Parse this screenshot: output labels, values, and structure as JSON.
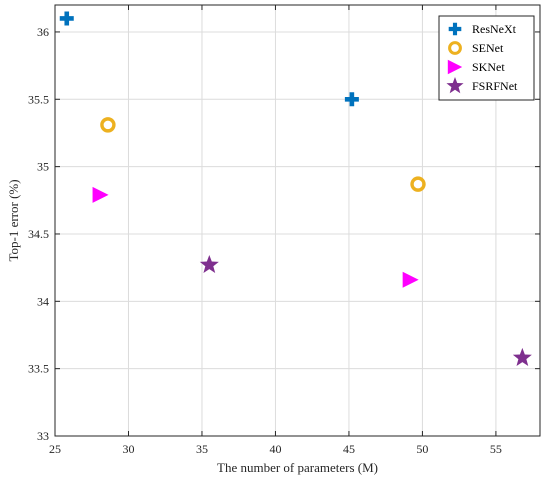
{
  "chart_data": {
    "type": "scatter",
    "xlabel": "The number of parameters (M)",
    "ylabel": "Top-1 error (%)",
    "xlim": [
      25,
      58
    ],
    "ylim": [
      33,
      36.2
    ],
    "xticks": [
      25,
      30,
      35,
      40,
      45,
      50,
      55
    ],
    "yticks": [
      33,
      33.5,
      34,
      34.5,
      35,
      35.5,
      36
    ],
    "xtick_labels": [
      "25",
      "30",
      "35",
      "40",
      "45",
      "50",
      "55"
    ],
    "ytick_labels": [
      "33",
      "33.5",
      "34",
      "34.5",
      "35",
      "35.5",
      "36"
    ],
    "grid": true,
    "legend_position": "top-right",
    "series": [
      {
        "name": "ResNeXt",
        "marker": "plus",
        "color": "#0072BD",
        "points": [
          [
            25.8,
            36.1
          ],
          [
            45.2,
            35.5
          ]
        ]
      },
      {
        "name": "SENet",
        "marker": "circle",
        "color": "#EDB120",
        "points": [
          [
            28.6,
            35.31
          ],
          [
            49.7,
            34.87
          ]
        ]
      },
      {
        "name": "SKNet",
        "marker": "triangle-right",
        "color": "#FF00FF",
        "points": [
          [
            28.1,
            34.79
          ],
          [
            49.2,
            34.16
          ]
        ]
      },
      {
        "name": "FSRFNet",
        "marker": "star",
        "color": "#7E2F8E",
        "points": [
          [
            35.5,
            34.27
          ],
          [
            56.8,
            33.58
          ]
        ]
      }
    ]
  }
}
